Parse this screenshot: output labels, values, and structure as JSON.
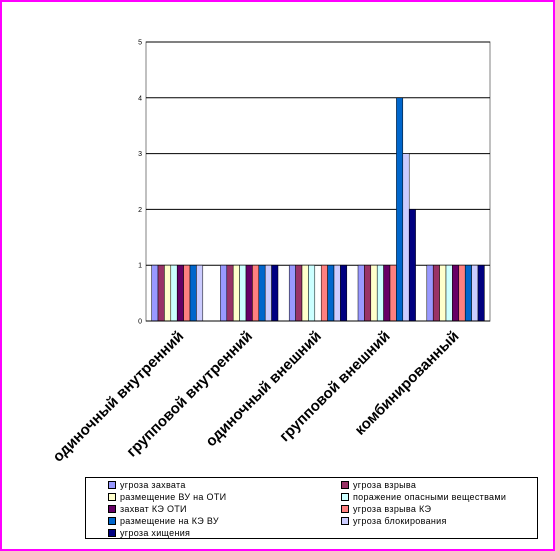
{
  "chart_data": {
    "type": "bar",
    "categories": [
      "одиночный внутренний",
      "групповой внутренний",
      "одиночный внешний",
      "групповой внешний",
      "комбинированный"
    ],
    "series": [
      {
        "name": "угроза захвата",
        "color": "#9999ff",
        "values": [
          1,
          1,
          1,
          1,
          1
        ]
      },
      {
        "name": "угроза взрыва",
        "color": "#993366",
        "values": [
          1,
          1,
          1,
          1,
          1
        ]
      },
      {
        "name": "размещение ВУ на ОТИ",
        "color": "#ffffcc",
        "values": [
          1,
          1,
          1,
          1,
          1
        ]
      },
      {
        "name": "поражение опасными веществами",
        "color": "#ccffff",
        "values": [
          1,
          1,
          1,
          1,
          1
        ]
      },
      {
        "name": "захват КЭ ОТИ",
        "color": "#660066",
        "values": [
          1,
          1,
          0,
          1,
          1
        ]
      },
      {
        "name": "угроза взрыва КЭ",
        "color": "#ff8080",
        "values": [
          1,
          1,
          1,
          1,
          1
        ]
      },
      {
        "name": "размещение на КЭ ВУ",
        "color": "#0066cc",
        "values": [
          1,
          1,
          1,
          4,
          1
        ]
      },
      {
        "name": "угроза блокирования",
        "color": "#ccccff",
        "values": [
          1,
          1,
          1,
          3,
          1
        ]
      },
      {
        "name": "угроза хищения",
        "color": "#000080",
        "values": [
          0,
          1,
          1,
          2,
          1
        ]
      }
    ],
    "ylim": [
      0,
      5
    ],
    "yticks": [
      "0",
      "1",
      "2",
      "3",
      "4",
      "5"
    ],
    "grid": true,
    "legend_position": "bottom"
  }
}
